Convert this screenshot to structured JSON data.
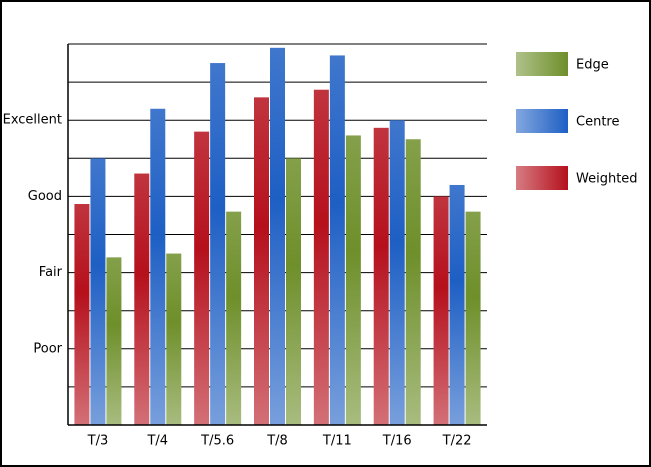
{
  "chart_data": {
    "type": "bar",
    "categories": [
      "T/3",
      "T/4",
      "T/5.6",
      "T/8",
      "T/11",
      "T/16",
      "T/22"
    ],
    "series": [
      {
        "name": "Weighted",
        "color": "#b5101c",
        "values": [
          5.8,
          6.6,
          7.7,
          8.6,
          8.8,
          7.8,
          6.0
        ]
      },
      {
        "name": "Centre",
        "color": "#1e5fc4",
        "values": [
          7.0,
          8.3,
          9.5,
          9.9,
          9.7,
          8.0,
          6.3
        ]
      },
      {
        "name": "Edge",
        "color": "#6e8f2a",
        "values": [
          4.4,
          4.5,
          5.6,
          7.0,
          7.6,
          7.5,
          5.6
        ]
      }
    ],
    "ylim": [
      0,
      10
    ],
    "yticks": [
      {
        "value": 2,
        "label": "Poor"
      },
      {
        "value": 4,
        "label": "Fair"
      },
      {
        "value": 6,
        "label": "Good"
      },
      {
        "value": 8,
        "label": "Excellent"
      }
    ],
    "ygrid": [
      1,
      3,
      5,
      7,
      9,
      10
    ],
    "grid": true,
    "legend": "right"
  }
}
